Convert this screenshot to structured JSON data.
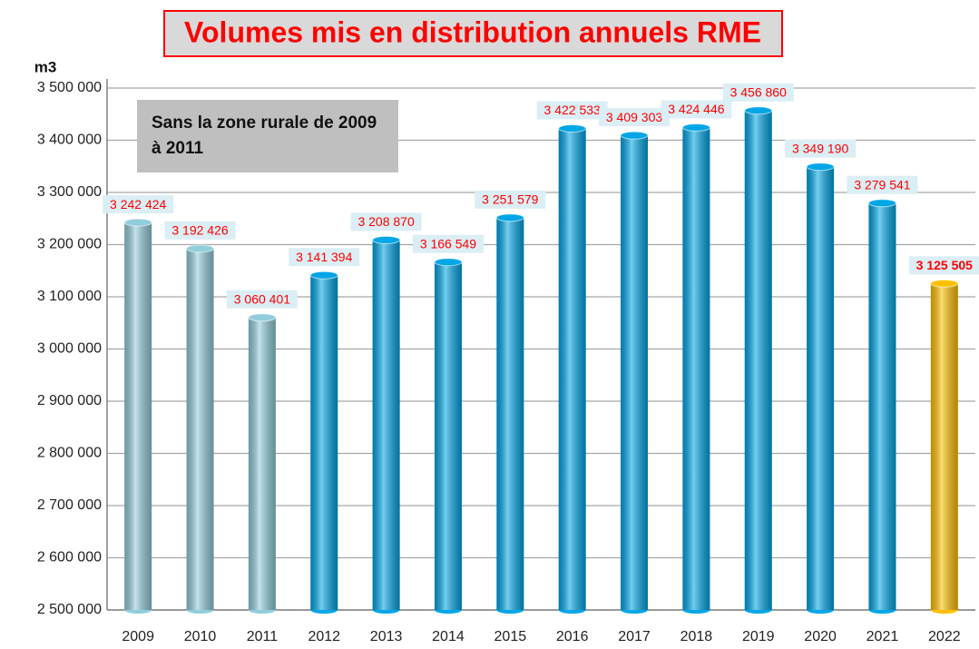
{
  "chart_data": {
    "type": "bar",
    "title": "Volumes mis en distribution annuels RME",
    "y_axis_label": "m3",
    "annotation": "Sans la zone rurale de 2009 à 2011",
    "categories": [
      "2009",
      "2010",
      "2011",
      "2012",
      "2013",
      "2014",
      "2015",
      "2016",
      "2017",
      "2018",
      "2019",
      "2020",
      "2021",
      "2022"
    ],
    "values": [
      3242424,
      3192426,
      3060401,
      3141394,
      3208870,
      3166549,
      3251579,
      3422533,
      3409303,
      3424446,
      3456860,
      3349190,
      3279541,
      3125505
    ],
    "value_labels": [
      "3 242 424",
      "3 192 426",
      "3 060 401",
      "3 141 394",
      "3 208 870",
      "3 166 549",
      "3 251 579",
      "3 422 533",
      "3 409 303",
      "3 424 446",
      "3 456 860",
      "3 349 190",
      "3 279 541",
      "3 125 505"
    ],
    "colors": [
      "#92cddc",
      "#92cddc",
      "#92cddc",
      "#00a6e6",
      "#00a6e6",
      "#00a6e6",
      "#00a6e6",
      "#00a6e6",
      "#00a6e6",
      "#00a6e6",
      "#00a6e6",
      "#00a6e6",
      "#00a6e6",
      "#ffc000"
    ],
    "ylim": [
      2500000,
      3500000
    ],
    "yticks": [
      {
        "value": 2500000,
        "label": "2 500 000"
      },
      {
        "value": 2600000,
        "label": "2 600 000"
      },
      {
        "value": 2700000,
        "label": "2 700 000"
      },
      {
        "value": 2800000,
        "label": "2 800 000"
      },
      {
        "value": 2900000,
        "label": "2 900 000"
      },
      {
        "value": 3000000,
        "label": "3 000 000"
      },
      {
        "value": 3100000,
        "label": "3 100 000"
      },
      {
        "value": 3200000,
        "label": "3 200 000"
      },
      {
        "value": 3300000,
        "label": "3 300 000"
      },
      {
        "value": 3400000,
        "label": "3 400 000"
      },
      {
        "value": 3500000,
        "label": "3 500 000"
      }
    ],
    "grid": true
  }
}
